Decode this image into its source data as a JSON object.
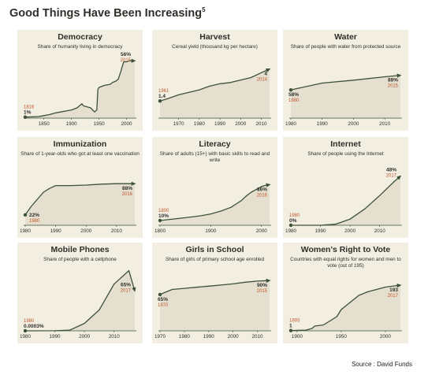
{
  "title": "Good Things Have Been Increasing",
  "title_footnote": "5",
  "source": "Source : David Funds",
  "colors": {
    "panel_bg": "#f2eee2",
    "fill": "#e4dfcf",
    "line": "#3c5237",
    "accent": "#c0582c",
    "text": "#2f2f2a"
  },
  "chart_data": [
    {
      "type": "area",
      "title": "Democracy",
      "subtitle": "Share of humanity living in democracy",
      "xlim": [
        1816,
        2015
      ],
      "ylim": [
        0,
        60
      ],
      "x": [
        1816,
        1840,
        1850,
        1860,
        1870,
        1880,
        1890,
        1900,
        1910,
        1919,
        1922,
        1935,
        1942,
        1946,
        1948,
        1950,
        1960,
        1970,
        1975,
        1980,
        1985,
        1990,
        1992,
        1995,
        2000,
        2005,
        2010,
        2015
      ],
      "y": [
        1,
        1.5,
        2.5,
        3.5,
        5,
        6,
        7,
        8,
        10,
        14,
        12,
        10,
        6,
        8,
        28,
        30,
        32,
        33,
        35,
        36,
        38,
        46,
        50,
        55,
        55,
        56,
        56,
        56
      ],
      "xticks": [
        1850,
        1900,
        1950,
        2000
      ],
      "annotations": [
        {
          "x": 1816,
          "y": 1,
          "year": "1816",
          "value": "1%",
          "pos": "above-left"
        },
        {
          "x": 2015,
          "y": 56,
          "year": "2015",
          "value": "56%",
          "pos": "left"
        }
      ]
    },
    {
      "type": "area",
      "title": "Harvest",
      "subtitle": "Cereal yield (thousand kg per hectare)",
      "xlim": [
        1961,
        2014
      ],
      "ylim": [
        0,
        5
      ],
      "x": [
        1961,
        1965,
        1970,
        1975,
        1980,
        1985,
        1990,
        1995,
        2000,
        2005,
        2010,
        2014
      ],
      "y": [
        1.4,
        1.6,
        1.9,
        2.1,
        2.3,
        2.6,
        2.8,
        2.9,
        3.1,
        3.3,
        3.7,
        4
      ],
      "xticks": [
        1970,
        1980,
        1990,
        2000,
        2010
      ],
      "annotations": [
        {
          "x": 1961,
          "y": 1.4,
          "year": "1961",
          "value": "1.4",
          "pos": "above"
        },
        {
          "x": 2014,
          "y": 4,
          "year": "2014",
          "value": "4",
          "pos": "below"
        }
      ]
    },
    {
      "type": "area",
      "title": "Water",
      "subtitle": "Share of people with water from protected source",
      "xlim": [
        1980,
        2015
      ],
      "ylim": [
        0,
        110
      ],
      "x": [
        1980,
        1990,
        2000,
        2010,
        2015
      ],
      "y": [
        58,
        72,
        78,
        85,
        88
      ],
      "xticks": [
        1980,
        1990,
        2000,
        2010
      ],
      "annotations": [
        {
          "x": 1980,
          "y": 58,
          "year": "1980",
          "value": "58%",
          "pos": "below"
        },
        {
          "x": 2015,
          "y": 88,
          "year": "2015",
          "value": "88%",
          "pos": "below-left"
        }
      ]
    },
    {
      "type": "area",
      "title": "Immunization",
      "subtitle": "Share of 1-year-olds who got at least one vaccination",
      "xlim": [
        1980,
        2016
      ],
      "ylim": [
        0,
        110
      ],
      "x": [
        1980,
        1982,
        1984,
        1986,
        1988,
        1990,
        1995,
        2000,
        2005,
        2010,
        2016
      ],
      "y": [
        22,
        40,
        55,
        70,
        78,
        84,
        84,
        85,
        87,
        88,
        88
      ],
      "xticks": [
        1980,
        1990,
        2000,
        2010
      ],
      "annotations": [
        {
          "x": 1980,
          "y": 22,
          "year": "1980",
          "value": "22%",
          "pos": "right"
        },
        {
          "x": 2016,
          "y": 88,
          "year": "2016",
          "value": "88%",
          "pos": "below"
        }
      ]
    },
    {
      "type": "area",
      "title": "Literacy",
      "subtitle": "Share of adults (15+) with basic skills to read and write",
      "xlim": [
        1800,
        2016
      ],
      "ylim": [
        0,
        110
      ],
      "x": [
        1800,
        1850,
        1880,
        1900,
        1920,
        1940,
        1950,
        1960,
        1970,
        1980,
        1990,
        2000,
        2010,
        2016
      ],
      "y": [
        10,
        16,
        20,
        24,
        30,
        38,
        45,
        52,
        62,
        70,
        76,
        82,
        85,
        86
      ],
      "xticks": [
        1800,
        1900,
        2000
      ],
      "annotations": [
        {
          "x": 1800,
          "y": 10,
          "year": "1800",
          "value": "10%",
          "pos": "above"
        },
        {
          "x": 2016,
          "y": 86,
          "year": "2016",
          "value": "86%",
          "pos": "below"
        }
      ]
    },
    {
      "type": "area",
      "title": "Internet",
      "subtitle": "Share of people using the Internet",
      "xlim": [
        1980,
        2017
      ],
      "ylim": [
        0,
        60
      ],
      "x": [
        1980,
        1990,
        1995,
        2000,
        2005,
        2010,
        2015,
        2017
      ],
      "y": [
        0,
        0,
        1,
        6,
        16,
        29,
        43,
        48
      ],
      "xticks": [
        1980,
        1990,
        2000,
        2010
      ],
      "annotations": [
        {
          "x": 1980,
          "y": 0,
          "year": "1980",
          "value": "0%",
          "pos": "above"
        },
        {
          "x": 2017,
          "y": 48,
          "year": "2017",
          "value": "48%",
          "pos": "left"
        }
      ]
    },
    {
      "type": "area",
      "title": "Mobile Phones",
      "subtitle": "Share of people with a cellphone",
      "xlim": [
        1980,
        2017
      ],
      "ylim": [
        0,
        100
      ],
      "x": [
        1980,
        1990,
        1995,
        2000,
        2005,
        2010,
        2015,
        2017
      ],
      "y": [
        0.0003,
        0.1,
        1,
        12,
        34,
        76,
        98,
        65
      ],
      "xticks": [
        1980,
        1990,
        2000,
        2010
      ],
      "annotations": [
        {
          "x": 1980,
          "y": 0.0003,
          "year": "1980",
          "value": "0.0003%",
          "pos": "above"
        },
        {
          "x": 2017,
          "y": 65,
          "year": "2017",
          "value": "65%",
          "pos": "left"
        }
      ]
    },
    {
      "type": "area",
      "title": "Girls in School",
      "subtitle": "Share of girls of primary school age enrolled",
      "xlim": [
        1970,
        2015
      ],
      "ylim": [
        0,
        110
      ],
      "x": [
        1970,
        1975,
        1980,
        1985,
        1990,
        1995,
        2000,
        2005,
        2010,
        2015
      ],
      "y": [
        65,
        74,
        76,
        78,
        80,
        82,
        84,
        87,
        89,
        90
      ],
      "xticks": [
        1970,
        1980,
        1990,
        2000,
        2010
      ],
      "annotations": [
        {
          "x": 1970,
          "y": 65,
          "year": "1970",
          "value": "65%",
          "pos": "below"
        },
        {
          "x": 2015,
          "y": 90,
          "year": "2015",
          "value": "90%",
          "pos": "below"
        }
      ]
    },
    {
      "type": "area",
      "title": "Women's Right to Vote",
      "subtitle": "Countries with equal rights for women and men to vote (out of 195)",
      "xlim": [
        1893,
        2017
      ],
      "ylim": [
        0,
        220
      ],
      "x": [
        1893,
        1902,
        1910,
        1917,
        1920,
        1930,
        1945,
        1950,
        1960,
        1970,
        1980,
        1990,
        2000,
        2010,
        2017
      ],
      "y": [
        1,
        2,
        3,
        10,
        20,
        25,
        60,
        90,
        120,
        150,
        165,
        175,
        185,
        190,
        193
      ],
      "xticks": [
        1900,
        1950,
        2000
      ],
      "annotations": [
        {
          "x": 1893,
          "y": 1,
          "year": "1893",
          "value": "1",
          "pos": "above"
        },
        {
          "x": 2017,
          "y": 193,
          "year": "2017",
          "value": "193",
          "pos": "below"
        }
      ]
    }
  ]
}
